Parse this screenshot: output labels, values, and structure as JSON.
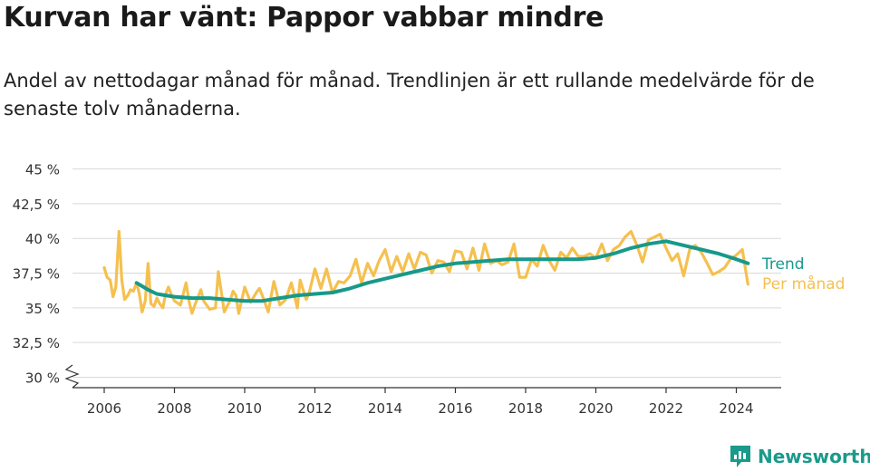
{
  "title": "Kurvan har vänt: Pappor vabbar mindre",
  "subtitle": "Andel av nettodagar månad för månad. Trendlinjen är ett rullande medelvärde för de senaste tolv månaderna.",
  "brand": "Newsworthy",
  "colors": {
    "trend": "#17998a",
    "monthly": "#f5c04f",
    "grid": "#d9d9d9",
    "axis": "#333333",
    "text": "#333333"
  },
  "chart_data": {
    "type": "line",
    "y_tick_labels": [
      "30 %",
      "32,5 %",
      "35 %",
      "37,5 %",
      "40 %",
      "42,5 %",
      "45 %"
    ],
    "y_ticks": [
      30,
      32.5,
      35,
      37.5,
      40,
      42.5,
      45
    ],
    "ylim": [
      30,
      45
    ],
    "x_tick_labels": [
      "2006",
      "2008",
      "2010",
      "2012",
      "2014",
      "2016",
      "2018",
      "2020",
      "2022",
      "2024"
    ],
    "x_ticks": [
      2006,
      2008,
      2010,
      2012,
      2014,
      2016,
      2018,
      2020,
      2022,
      2024
    ],
    "xlim": [
      2005.0,
      2025.0
    ],
    "grid": true,
    "y_axis_break": true,
    "series": [
      {
        "name": "Per månad",
        "color": "#f5c04f",
        "x": [
          2006.0,
          2006.08,
          2006.17,
          2006.25,
          2006.33,
          2006.42,
          2006.5,
          2006.58,
          2006.67,
          2006.75,
          2006.83,
          2006.92,
          2007.0,
          2007.08,
          2007.17,
          2007.25,
          2007.33,
          2007.42,
          2007.5,
          2007.58,
          2007.67,
          2007.75,
          2007.83,
          2007.92,
          2008.0,
          2008.17,
          2008.33,
          2008.42,
          2008.5,
          2008.58,
          2008.75,
          2008.83,
          2009.0,
          2009.17,
          2009.25,
          2009.42,
          2009.58,
          2009.67,
          2009.75,
          2009.83,
          2010.0,
          2010.17,
          2010.33,
          2010.42,
          2010.5,
          2010.67,
          2010.83,
          2011.0,
          2011.17,
          2011.33,
          2011.5,
          2011.58,
          2011.75,
          2011.83,
          2012.0,
          2012.17,
          2012.33,
          2012.5,
          2012.67,
          2012.83,
          2013.0,
          2013.17,
          2013.33,
          2013.5,
          2013.67,
          2013.83,
          2014.0,
          2014.17,
          2014.33,
          2014.5,
          2014.67,
          2014.83,
          2015.0,
          2015.17,
          2015.33,
          2015.5,
          2015.67,
          2015.83,
          2016.0,
          2016.17,
          2016.33,
          2016.5,
          2016.67,
          2016.83,
          2017.0,
          2017.17,
          2017.33,
          2017.5,
          2017.67,
          2017.83,
          2018.0,
          2018.17,
          2018.33,
          2018.5,
          2018.67,
          2018.83,
          2019.0,
          2019.17,
          2019.33,
          2019.5,
          2019.67,
          2019.83,
          2020.0,
          2020.17,
          2020.33,
          2020.5,
          2020.67,
          2020.83,
          2021.0,
          2021.17,
          2021.33,
          2021.5,
          2021.67,
          2021.83,
          2022.0,
          2022.17,
          2022.33,
          2022.5,
          2022.67,
          2022.83,
          2023.0,
          2023.17,
          2023.33,
          2023.5,
          2023.67,
          2023.83,
          2024.0,
          2024.17,
          2024.33
        ],
        "y": [
          37.9,
          37.2,
          37.0,
          35.8,
          36.5,
          40.5,
          37.0,
          35.6,
          35.9,
          36.3,
          36.2,
          36.8,
          36.0,
          34.7,
          35.5,
          38.2,
          35.3,
          35.1,
          35.7,
          35.3,
          35.0,
          36.0,
          36.5,
          35.9,
          35.5,
          35.2,
          36.8,
          35.4,
          34.6,
          35.2,
          36.3,
          35.5,
          34.9,
          35.0,
          37.6,
          34.7,
          35.5,
          36.2,
          35.9,
          34.6,
          36.5,
          35.4,
          36.1,
          36.4,
          35.9,
          34.7,
          36.9,
          35.2,
          35.6,
          36.8,
          35.0,
          37.0,
          35.6,
          36.0,
          37.8,
          36.4,
          37.8,
          36.1,
          36.9,
          36.8,
          37.3,
          38.5,
          36.8,
          38.2,
          37.3,
          38.4,
          39.2,
          37.6,
          38.7,
          37.6,
          38.9,
          37.8,
          39.0,
          38.8,
          37.5,
          38.4,
          38.3,
          37.6,
          39.1,
          39.0,
          37.8,
          39.3,
          37.7,
          39.6,
          38.2,
          38.4,
          38.1,
          38.3,
          39.6,
          37.2,
          37.2,
          38.5,
          38.0,
          39.5,
          38.4,
          37.7,
          39.0,
          38.6,
          39.3,
          38.7,
          38.7,
          38.9,
          38.6,
          39.6,
          38.4,
          39.2,
          39.5,
          40.1,
          40.5,
          39.5,
          38.3,
          39.9,
          40.1,
          40.3,
          39.3,
          38.4,
          38.9,
          37.3,
          39.2,
          39.5,
          39.0,
          38.2,
          37.4,
          37.6,
          37.9,
          38.5,
          38.8,
          39.2,
          36.7
        ]
      },
      {
        "name": "Trend",
        "color": "#17998a",
        "x": [
          2006.92,
          2007.25,
          2007.5,
          2007.75,
          2008.0,
          2008.5,
          2009.0,
          2009.5,
          2010.0,
          2010.5,
          2011.0,
          2011.5,
          2012.0,
          2012.5,
          2013.0,
          2013.5,
          2014.0,
          2014.5,
          2015.0,
          2015.5,
          2016.0,
          2016.5,
          2017.0,
          2017.5,
          2018.0,
          2018.5,
          2019.0,
          2019.5,
          2020.0,
          2020.5,
          2021.0,
          2021.5,
          2022.0,
          2022.5,
          2023.0,
          2023.5,
          2024.0,
          2024.33
        ],
        "y": [
          36.8,
          36.3,
          36.0,
          35.9,
          35.8,
          35.7,
          35.7,
          35.6,
          35.5,
          35.5,
          35.7,
          35.9,
          36.0,
          36.1,
          36.4,
          36.8,
          37.1,
          37.4,
          37.7,
          38.0,
          38.2,
          38.3,
          38.4,
          38.5,
          38.5,
          38.5,
          38.5,
          38.5,
          38.6,
          38.9,
          39.3,
          39.6,
          39.8,
          39.5,
          39.2,
          38.9,
          38.5,
          38.2
        ]
      }
    ]
  }
}
